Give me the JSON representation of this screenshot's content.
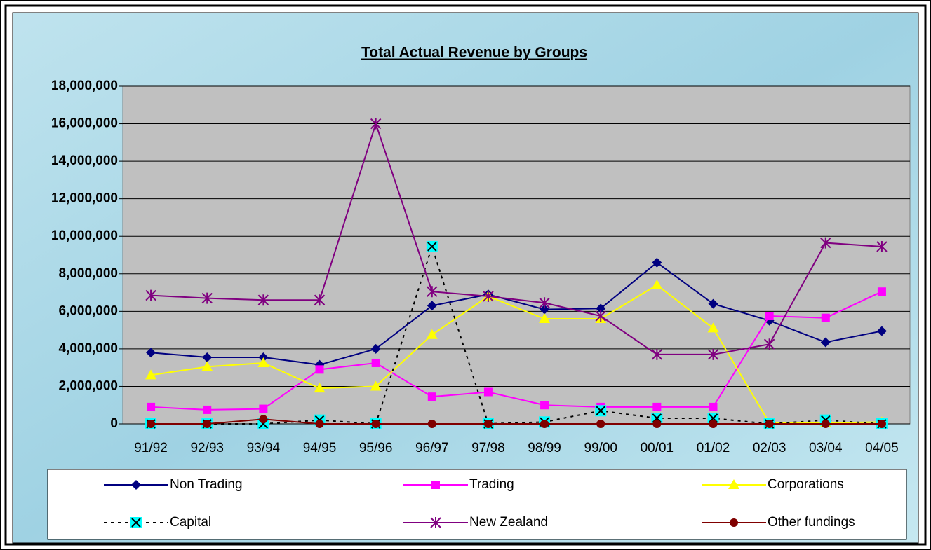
{
  "chart_data": {
    "type": "line",
    "title": "Total Actual Revenue by Groups",
    "categories": [
      "91/92",
      "92/93",
      "93/94",
      "94/95",
      "95/96",
      "96/97",
      "97/98",
      "98/99",
      "99/00",
      "00/01",
      "01/02",
      "02/03",
      "03/04",
      "04/05"
    ],
    "ylim": [
      0,
      18000000
    ],
    "yticks": [
      0,
      {
        "value": 2000000,
        "label": "2,000,000"
      },
      {
        "value": 4000000,
        "label": "4,000,000"
      },
      {
        "value": 6000000,
        "label": "6,000,000"
      },
      {
        "value": 8000000,
        "label": "8,000,000"
      },
      {
        "value": 10000000,
        "label": "10,000,000"
      },
      {
        "value": 12000000,
        "label": "12,000,000"
      },
      {
        "value": 14000000,
        "label": "14,000,000"
      },
      {
        "value": 16000000,
        "label": "16,000,000"
      },
      {
        "value": 18000000,
        "label": "18,000,000"
      }
    ],
    "grid": true,
    "legend": "bottom",
    "series": [
      {
        "name": "Non Trading",
        "color": "#000080",
        "marker": "diamond",
        "values": [
          3800000,
          3550000,
          3550000,
          3150000,
          4000000,
          6300000,
          6900000,
          6100000,
          6150000,
          8600000,
          6400000,
          5500000,
          4350000,
          4950000
        ]
      },
      {
        "name": "Trading",
        "color": "#ff00ff",
        "marker": "square",
        "values": [
          900000,
          750000,
          800000,
          2900000,
          3250000,
          1450000,
          1700000,
          1000000,
          900000,
          900000,
          900000,
          5750000,
          5650000,
          7050000
        ]
      },
      {
        "name": "Corporations",
        "color": "#ffff00",
        "marker": "triangle",
        "values": [
          2600000,
          3050000,
          3250000,
          1900000,
          2000000,
          4750000,
          6800000,
          5600000,
          5600000,
          7400000,
          5100000,
          50000,
          50000,
          100000
        ]
      },
      {
        "name": "Capital",
        "color": "#000000",
        "marker": "xbox",
        "dash": true,
        "values": [
          0,
          0,
          0,
          200000,
          0,
          9450000,
          0,
          100000,
          700000,
          300000,
          300000,
          0,
          200000,
          0
        ]
      },
      {
        "name": "New  Zealand",
        "color": "#800080",
        "marker": "star",
        "values": [
          6850000,
          6700000,
          6600000,
          6600000,
          16000000,
          7050000,
          6800000,
          6450000,
          5750000,
          3700000,
          3700000,
          4250000,
          9650000,
          9450000
        ]
      },
      {
        "name": "Other fundings",
        "color": "#800000",
        "marker": "circle",
        "values": [
          0,
          0,
          250000,
          0,
          0,
          0,
          0,
          0,
          0,
          0,
          0,
          0,
          0,
          0
        ]
      }
    ]
  }
}
